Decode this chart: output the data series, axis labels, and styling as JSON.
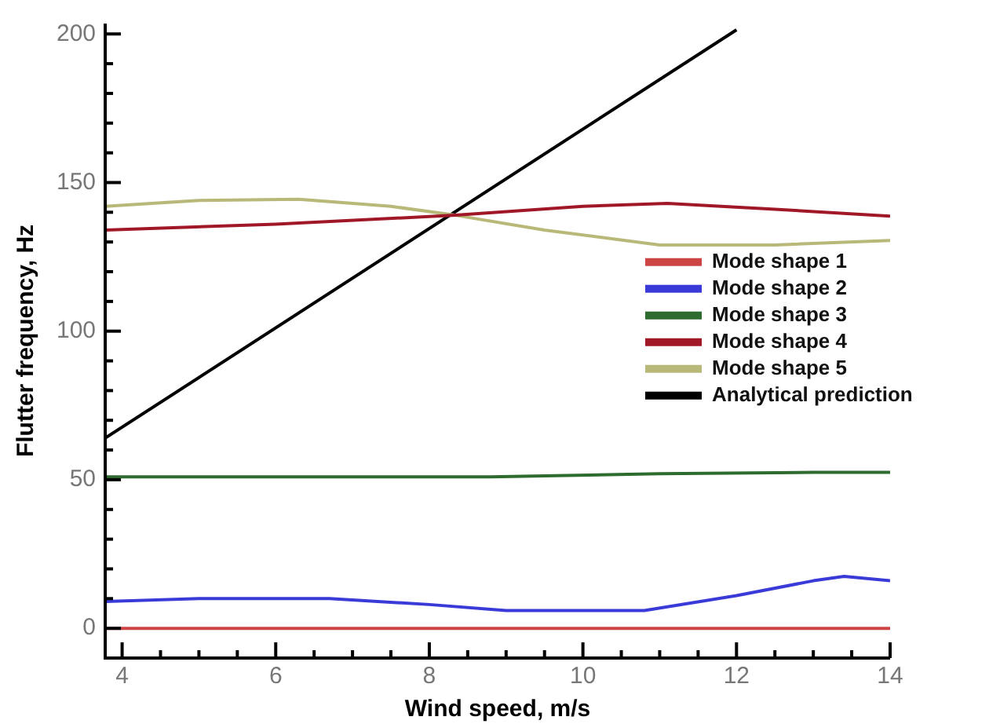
{
  "chart_data": {
    "type": "line",
    "xlabel": "Wind speed, m/s",
    "ylabel": "Flutter frequency, Hz",
    "xlim": [
      3.78,
      14
    ],
    "ylim": [
      -10,
      203.5
    ],
    "xticks": [
      4,
      {
        "value": 4.5,
        "label": null
      },
      {
        "value": 5,
        "label": null
      },
      {
        "value": 5.5,
        "label": null
      },
      6,
      {
        "value": 6.5,
        "label": null
      },
      {
        "value": 7,
        "label": null
      },
      {
        "value": 7.5,
        "label": null
      },
      8,
      {
        "value": 8.5,
        "label": null
      },
      {
        "value": 9,
        "label": null
      },
      {
        "value": 9.5,
        "label": null
      },
      10,
      {
        "value": 10.5,
        "label": null
      },
      {
        "value": 11,
        "label": null
      },
      {
        "value": 11.5,
        "label": null
      },
      12,
      {
        "value": 12.5,
        "label": null
      },
      {
        "value": 13,
        "label": null
      },
      {
        "value": 13.5,
        "label": null
      },
      14
    ],
    "yticks": [
      0,
      {
        "value": 10,
        "label": null
      },
      {
        "value": 20,
        "label": null
      },
      {
        "value": 30,
        "label": null
      },
      {
        "value": 40,
        "label": null
      },
      50,
      {
        "value": 60,
        "label": null
      },
      {
        "value": 70,
        "label": null
      },
      {
        "value": 80,
        "label": null
      },
      {
        "value": 90,
        "label": null
      },
      100,
      {
        "value": 110,
        "label": null
      },
      {
        "value": 120,
        "label": null
      },
      {
        "value": 130,
        "label": null
      },
      {
        "value": 140,
        "label": null
      },
      150,
      {
        "value": 160,
        "label": null
      },
      {
        "value": 170,
        "label": null
      },
      {
        "value": 180,
        "label": null
      },
      {
        "value": 190,
        "label": null
      },
      200
    ],
    "grid": false,
    "legend": "right",
    "marker": "none",
    "line_style": "solid",
    "series": [
      {
        "name": "Mode shape 1",
        "color": "#cc4444",
        "x": [
          3.78,
          14
        ],
        "values": [
          0,
          0
        ]
      },
      {
        "name": "Mode shape 2",
        "color": "#3a3ad8",
        "x": [
          3.78,
          5,
          6.7,
          8,
          9,
          10,
          10.8,
          12,
          13,
          13.4,
          14
        ],
        "values": [
          9,
          10,
          10,
          8,
          6,
          6,
          6,
          11,
          16,
          17.5,
          16
        ]
      },
      {
        "name": "Mode shape 3",
        "color": "#2e6b2e",
        "x": [
          3.78,
          8.8,
          11,
          13,
          14
        ],
        "values": [
          51,
          51,
          52,
          52.5,
          52.5
        ]
      },
      {
        "name": "Mode shape 4",
        "color": "#a01828",
        "x": [
          3.78,
          6,
          8.34,
          10,
          11.1,
          12.5,
          14
        ],
        "values": [
          134,
          136,
          139,
          142,
          143,
          141,
          138.7
        ]
      },
      {
        "name": "Mode shape 5",
        "color": "#b8b878",
        "x": [
          3.78,
          5,
          6.3,
          7.5,
          8.34,
          9.5,
          11,
          12.5,
          14
        ],
        "values": [
          142,
          144,
          144.4,
          142,
          139,
          134,
          129,
          129,
          130.5
        ]
      },
      {
        "name": "Analytical prediction",
        "color": "#000000",
        "x": [
          3.78,
          12
        ],
        "values": [
          64,
          201.4
        ]
      }
    ]
  }
}
